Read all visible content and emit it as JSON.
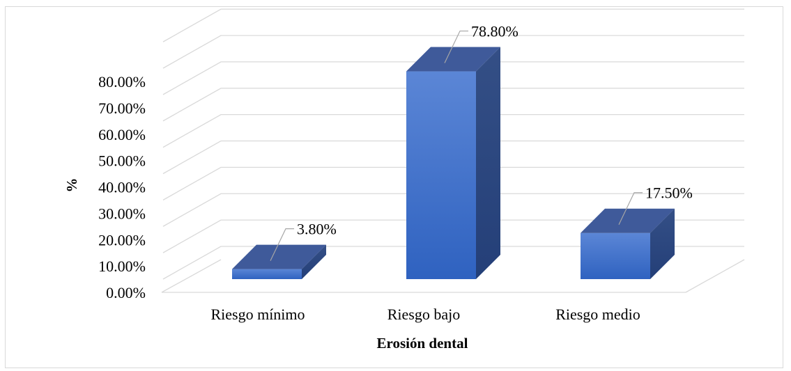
{
  "chart_data": {
    "type": "bar",
    "style": "3d-column",
    "categories": [
      "Riesgo mínimo",
      "Riesgo bajo",
      "Riesgo medio"
    ],
    "values": [
      3.8,
      78.8,
      17.5
    ],
    "data_labels": [
      "3.80%",
      "78.80%",
      "17.50%"
    ],
    "ylim": [
      0,
      80
    ],
    "y_ticks": [
      "0.00%",
      "10.00%",
      "20.00%",
      "30.00%",
      "40.00%",
      "50.00%",
      "60.00%",
      "70.00%",
      "80.00%"
    ],
    "xlabel": "Erosión dental",
    "ylabel": "%",
    "grid": true,
    "legend": "none",
    "colors": {
      "bar_front": "#4472c4",
      "bar_top": "#3f5a9a",
      "bar_side": "#2e4b86",
      "grid": "#d9d9d9"
    }
  }
}
